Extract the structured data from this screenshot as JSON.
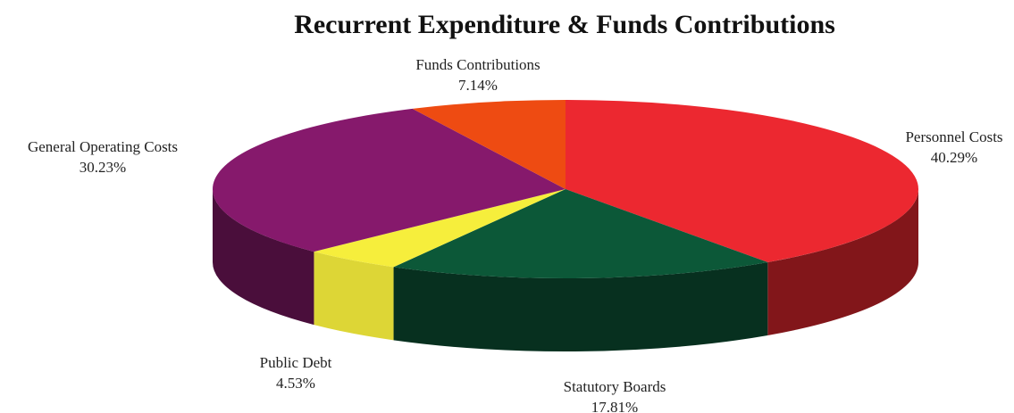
{
  "chart_data": {
    "type": "pie",
    "title": "Recurrent Expenditure & Funds Contributions",
    "categories": [
      "Personnel Costs",
      "Statutory Boards",
      "Public Debt",
      "General Operating Costs",
      "Funds Contributions"
    ],
    "values": [
      40.29,
      17.81,
      4.53,
      30.23,
      7.14
    ],
    "value_labels": [
      "40.29%",
      "17.81%",
      "4.53%",
      "30.23%",
      "7.14%"
    ],
    "colors": [
      "#ec2830",
      "#0c5838",
      "#f6ee3c",
      "#86196c",
      "#ee4b12"
    ]
  }
}
